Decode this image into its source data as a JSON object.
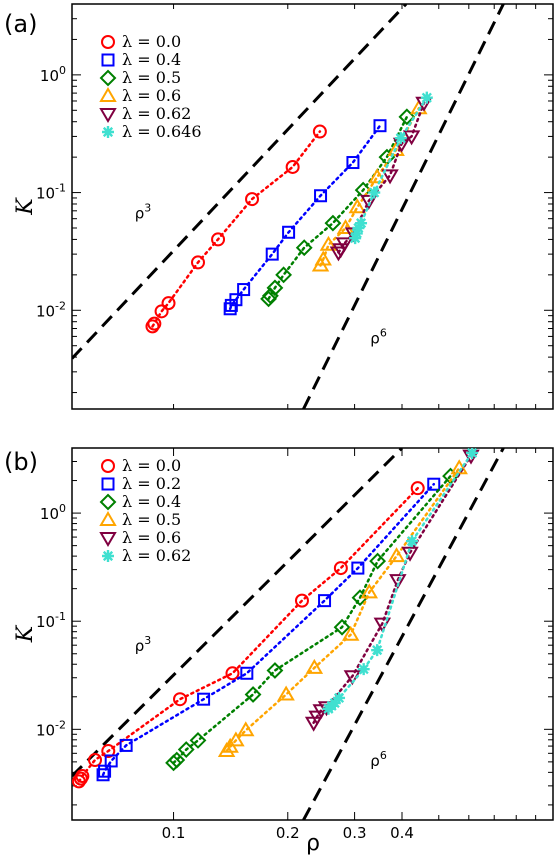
{
  "figure": {
    "xlabel": "ρ"
  },
  "chart_data": [
    {
      "panel_label": "(a)",
      "type": "scatter",
      "xscale": "log",
      "yscale": "log",
      "xlim": [
        0.054,
        1.0
      ],
      "ylim": [
        0.00145,
        4.0
      ],
      "ylabel": "K",
      "xlabel": "",
      "x_tick_labels": [],
      "y_ticks": [
        0.01,
        0.1,
        1.0
      ],
      "y_tick_labels": [
        "10",
        "10",
        "10"
      ],
      "y_tick_exponents": [
        "-2",
        "-1",
        "0"
      ],
      "legend_position": "top-left",
      "guide_lines": [
        {
          "name": "ρ3",
          "base": "ρ",
          "exponent": "3",
          "points": [
            [
              0.054,
              0.0039
            ],
            [
              0.41,
              4.0
            ]
          ],
          "label_at": [
            0.079,
            0.06
          ]
        },
        {
          "name": "ρ6",
          "base": "ρ",
          "exponent": "6",
          "points": [
            [
              0.22,
              0.00145
            ],
            [
              0.74,
              4.0
            ]
          ],
          "label_at": [
            0.33,
            0.0052
          ]
        }
      ],
      "series": [
        {
          "name": "λ = 0.0",
          "marker": "circle",
          "color": "#ff0000",
          "points": [
            [
              0.088,
              0.0073
            ],
            [
              0.089,
              0.0077
            ],
            [
              0.093,
              0.0098
            ],
            [
              0.097,
              0.0115
            ],
            [
              0.116,
              0.0255
            ],
            [
              0.131,
              0.04
            ],
            [
              0.161,
              0.088
            ],
            [
              0.206,
              0.165
            ],
            [
              0.243,
              0.33
            ]
          ]
        },
        {
          "name": "λ = 0.4",
          "marker": "square",
          "color": "#0000ff",
          "points": [
            [
              0.141,
              0.0103
            ],
            [
              0.142,
              0.011
            ],
            [
              0.146,
              0.0123
            ],
            [
              0.153,
              0.015
            ],
            [
              0.182,
              0.03
            ],
            [
              0.201,
              0.046
            ],
            [
              0.244,
              0.094
            ],
            [
              0.297,
              0.18
            ],
            [
              0.35,
              0.37
            ]
          ]
        },
        {
          "name": "λ = 0.5",
          "marker": "diamond",
          "color": "#008000",
          "points": [
            [
              0.178,
              0.0125
            ],
            [
              0.18,
              0.0133
            ],
            [
              0.185,
              0.0155
            ],
            [
              0.195,
              0.02
            ],
            [
              0.221,
              0.034
            ],
            [
              0.263,
              0.055
            ],
            [
              0.316,
              0.105
            ],
            [
              0.365,
              0.2
            ],
            [
              0.412,
              0.44
            ]
          ]
        },
        {
          "name": "λ = 0.6",
          "marker": "triangle-up",
          "color": "#ffa500",
          "points": [
            [
              0.244,
              0.024
            ],
            [
              0.248,
              0.027
            ],
            [
              0.256,
              0.036
            ],
            [
              0.284,
              0.05
            ],
            [
              0.305,
              0.075
            ],
            [
              0.344,
              0.135
            ],
            [
              0.386,
              0.23
            ],
            [
              0.443,
              0.52
            ]
          ]
        },
        {
          "name": "λ = 0.62",
          "marker": "triangle-down",
          "color": "#800040",
          "points": [
            [
              0.272,
              0.031
            ],
            [
              0.276,
              0.033
            ],
            [
              0.282,
              0.037
            ],
            [
              0.298,
              0.045
            ],
            [
              0.327,
              0.085
            ],
            [
              0.372,
              0.14
            ],
            [
              0.399,
              0.26
            ],
            [
              0.424,
              0.3
            ],
            [
              0.457,
              0.58
            ]
          ]
        },
        {
          "name": "λ = 0.646",
          "marker": "star",
          "color": "#40e0d0",
          "points": [
            [
              0.301,
              0.041
            ],
            [
              0.304,
              0.045
            ],
            [
              0.307,
              0.05
            ],
            [
              0.312,
              0.055
            ],
            [
              0.338,
              0.1
            ],
            [
              0.397,
              0.29
            ],
            [
              0.465,
              0.64
            ]
          ]
        }
      ]
    },
    {
      "panel_label": "(b)",
      "type": "scatter",
      "xscale": "log",
      "yscale": "log",
      "xlim": [
        0.054,
        1.0
      ],
      "ylim": [
        0.00145,
        4.0
      ],
      "ylabel": "K",
      "xlabel": "ρ",
      "x_ticks": [
        0.1,
        0.2,
        0.3,
        0.4
      ],
      "x_tick_labels": [
        "0.1",
        "0.2",
        "0.3",
        "0.4"
      ],
      "y_ticks": [
        0.01,
        0.1,
        1.0
      ],
      "y_tick_labels": [
        "10",
        "10",
        "10"
      ],
      "y_tick_exponents": [
        "-2",
        "-1",
        "0"
      ],
      "legend_position": "top-left",
      "guide_lines": [
        {
          "name": "ρ3",
          "base": "ρ",
          "exponent": "3",
          "points": [
            [
              0.054,
              0.0037
            ],
            [
              0.4,
              4.0
            ]
          ],
          "label_at": [
            0.079,
            0.053
          ]
        },
        {
          "name": "ρ6",
          "base": "ρ",
          "exponent": "6",
          "points": [
            [
              0.22,
              0.00145
            ],
            [
              0.74,
              4.0
            ]
          ],
          "label_at": [
            0.33,
            0.0046
          ]
        }
      ],
      "series": [
        {
          "name": "λ = 0.0",
          "marker": "circle",
          "color": "#ff0000",
          "points": [
            [
              0.0563,
              0.0033
            ],
            [
              0.057,
              0.0035
            ],
            [
              0.0575,
              0.0037
            ],
            [
              0.0621,
              0.0052
            ],
            [
              0.0673,
              0.0063
            ],
            [
              0.104,
              0.019
            ],
            [
              0.143,
              0.033
            ],
            [
              0.218,
              0.155
            ],
            [
              0.276,
              0.31
            ],
            [
              0.44,
              1.7
            ]
          ]
        },
        {
          "name": "λ = 0.2",
          "marker": "square",
          "color": "#0000ff",
          "points": [
            [
              0.0652,
              0.0038
            ],
            [
              0.0658,
              0.0041
            ],
            [
              0.0685,
              0.0051
            ],
            [
              0.075,
              0.0071
            ],
            [
              0.12,
              0.019
            ],
            [
              0.156,
              0.033
            ],
            [
              0.25,
              0.155
            ],
            [
              0.306,
              0.31
            ],
            [
              0.485,
              1.85
            ]
          ]
        },
        {
          "name": "λ = 0.4",
          "marker": "diamond",
          "color": "#008000",
          "points": [
            [
              0.1,
              0.0049
            ],
            [
              0.102,
              0.0052
            ],
            [
              0.108,
              0.0065
            ],
            [
              0.116,
              0.0079
            ],
            [
              0.162,
              0.021
            ],
            [
              0.185,
              0.035
            ],
            [
              0.278,
              0.088
            ],
            [
              0.31,
              0.165
            ],
            [
              0.345,
              0.36
            ],
            [
              0.537,
              2.2
            ]
          ]
        },
        {
          "name": "λ = 0.5",
          "marker": "triangle-up",
          "color": "#ffa500",
          "points": [
            [
              0.138,
              0.0063
            ],
            [
              0.141,
              0.0069
            ],
            [
              0.146,
              0.0079
            ],
            [
              0.155,
              0.0098
            ],
            [
              0.198,
              0.021
            ],
            [
              0.235,
              0.037
            ],
            [
              0.293,
              0.075
            ],
            [
              0.328,
              0.185
            ],
            [
              0.387,
              0.4
            ],
            [
              0.566,
              2.6
            ]
          ]
        },
        {
          "name": "λ = 0.6",
          "marker": "triangle-down",
          "color": "#800040",
          "points": [
            [
              0.234,
              0.0115
            ],
            [
              0.239,
              0.0131
            ],
            [
              0.245,
              0.015
            ],
            [
              0.253,
              0.016
            ],
            [
              0.296,
              0.031
            ],
            [
              0.355,
              0.095
            ],
            [
              0.39,
              0.24
            ],
            [
              0.42,
              0.43
            ],
            [
              0.608,
              3.4
            ]
          ]
        },
        {
          "name": "λ = 0.62",
          "marker": "star",
          "color": "#40e0d0",
          "points": [
            [
              0.256,
              0.0155
            ],
            [
              0.261,
              0.0165
            ],
            [
              0.266,
              0.0175
            ],
            [
              0.273,
              0.0195
            ],
            [
              0.317,
              0.036
            ],
            [
              0.344,
              0.054
            ],
            [
              0.425,
              0.55
            ],
            [
              0.612,
              3.6
            ]
          ]
        }
      ]
    }
  ]
}
